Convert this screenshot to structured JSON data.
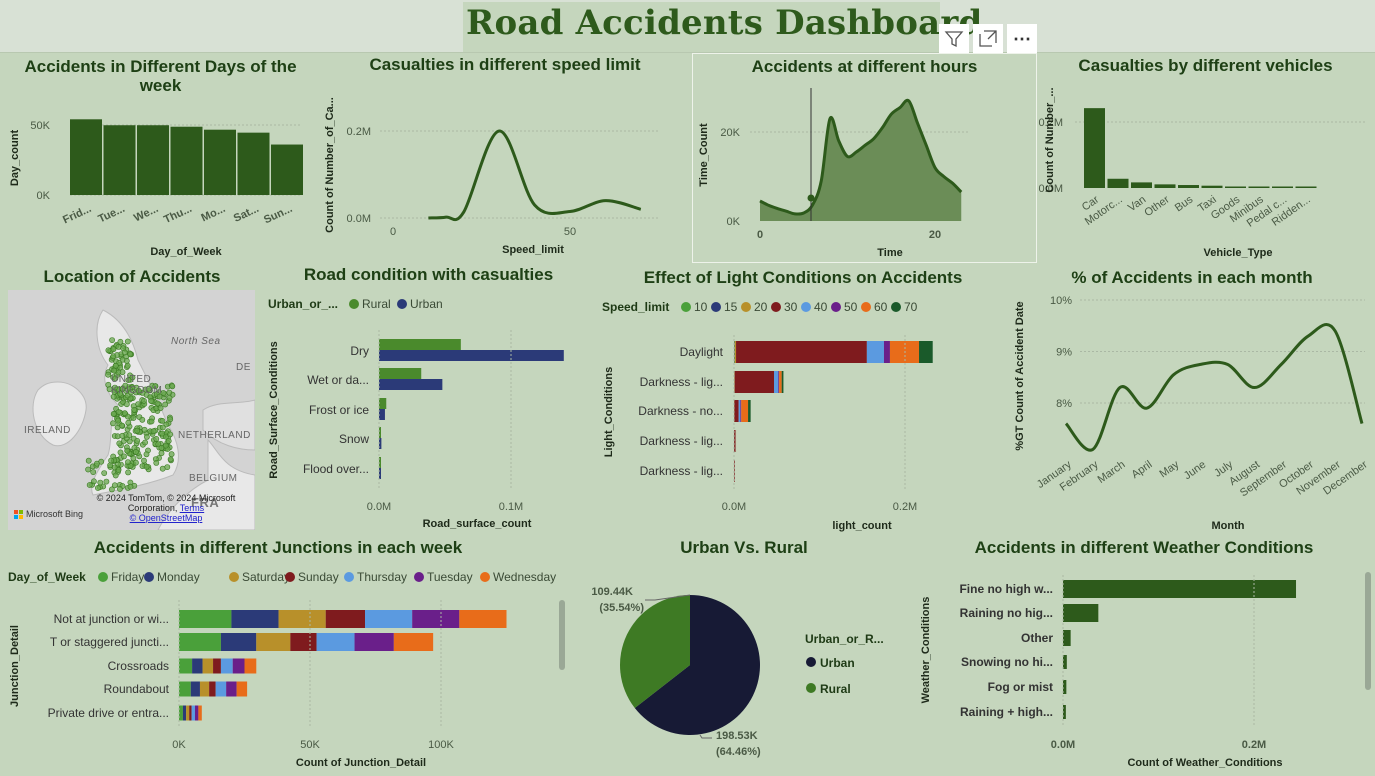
{
  "title": "Road Accidents Dashboard",
  "toolbar": {
    "filter_icon": "filter-icon",
    "focus_icon": "focus-mode-icon",
    "more_icon": "more-options-icon",
    "more_label": "⋯"
  },
  "colors": {
    "dark_green": "#2d5a1b",
    "bg": "#c5d6bd",
    "rural": "#4a8a2c",
    "urban": "#2b3a78",
    "pie_urban": "#171a35",
    "pie_rural": "#3e7a24"
  },
  "map": {
    "title": "Location of Accidents",
    "labels": {
      "north_sea": "North Sea",
      "uk1": "UNITED",
      "uk2": "KINGDOM",
      "ireland": "IRELAND",
      "netherlands": "NETHERLAND",
      "belgium": "BELGIUM",
      "de": "DE",
      "fr": "FRA"
    },
    "attribution1": "© 2024 TomTom, © 2024 Microsoft Corporation,",
    "terms": "Terms",
    "osm": "© OpenStreetMap",
    "brand": "Microsoft Bing"
  },
  "chart_data": [
    {
      "id": "days",
      "type": "bar",
      "title": "Accidents in Different Days of the week",
      "xlabel": "Day_of_Week",
      "ylabel": "Day_count",
      "categories": [
        "Frid...",
        "Tue...",
        "We...",
        "Thu...",
        "Mo...",
        "Sat...",
        "Sun..."
      ],
      "values": [
        51000,
        47000,
        47000,
        46000,
        44000,
        42000,
        34000
      ],
      "ylim": [
        0,
        60000
      ],
      "yticks": [
        "0K",
        "50K"
      ]
    },
    {
      "id": "speed",
      "type": "line",
      "title": "Casualties in different speed limit",
      "xlabel": "Speed_limit",
      "ylabel": "Count of Number_of_Ca...",
      "x": [
        10,
        15,
        20,
        30,
        40,
        50,
        60,
        70
      ],
      "y": [
        100,
        2000,
        14000,
        200000,
        30000,
        15000,
        40000,
        20000
      ],
      "xticks": [
        "0",
        "50"
      ],
      "yticks": [
        "0.0M",
        "0.2M"
      ]
    },
    {
      "id": "hours",
      "type": "area",
      "title": "Accidents at different hours",
      "xlabel": "Time",
      "ylabel": "Time_Count",
      "x": [
        0,
        1,
        2,
        3,
        4,
        5,
        6,
        7,
        8,
        9,
        10,
        11,
        12,
        13,
        14,
        15,
        16,
        17,
        18,
        19,
        20,
        21,
        22,
        23
      ],
      "y": [
        4500,
        3500,
        2800,
        2200,
        1600,
        1800,
        3600,
        9000,
        23000,
        18000,
        14500,
        15500,
        17000,
        18500,
        21000,
        24000,
        25500,
        27000,
        22000,
        17000,
        12000,
        10000,
        8500,
        6500
      ],
      "xticks": [
        "0",
        "20"
      ],
      "yticks": [
        "0K",
        "20K"
      ]
    },
    {
      "id": "vehicles",
      "type": "bar",
      "title": "Casualties by different vehicles",
      "xlabel": "Vehicle_Type",
      "ylabel": "Count of Number_...",
      "categories": [
        "Car",
        "Motorc...",
        "Van",
        "Other",
        "Bus",
        "Taxi",
        "Goods",
        "Minibus",
        "Pedal c...",
        "Ridden..."
      ],
      "values": [
        242000,
        28000,
        17000,
        11000,
        9000,
        7000,
        4000,
        1500,
        1000,
        500
      ],
      "yticks": [
        "0.0M",
        "0.2M"
      ]
    },
    {
      "id": "road",
      "type": "bar",
      "title": "Road condition with casualties",
      "xlabel": "Road_surface_count",
      "ylabel": "Road_Surface_Conditions",
      "legend_title": "Urban_or_...",
      "series": [
        {
          "name": "Rural",
          "values": [
            62000,
            32000,
            5500,
            1200,
            200
          ]
        },
        {
          "name": "Urban",
          "values": [
            140000,
            48000,
            4500,
            1800,
            500
          ]
        }
      ],
      "categories": [
        "Dry",
        "Wet or da...",
        "Frost or ice",
        "Snow",
        "Flood over..."
      ],
      "xticks": [
        "0.0M",
        "0.1M"
      ]
    },
    {
      "id": "light",
      "type": "bar",
      "title": "Effect of Light Conditions on Accidents",
      "xlabel": "light_count",
      "ylabel": "Light_Conditions",
      "legend_title": "Speed_limit",
      "legend": [
        "10",
        "15",
        "20",
        "30",
        "40",
        "50",
        "60",
        "70"
      ],
      "categories": [
        "Daylight",
        "Darkness - lig...",
        "Darkness - no...",
        "Darkness - lig...",
        "Darkness - lig..."
      ],
      "series": [
        {
          "name": "10",
          "values": [
            500,
            200,
            100,
            50,
            20
          ]
        },
        {
          "name": "15",
          "values": [
            400,
            100,
            50,
            20,
            10
          ]
        },
        {
          "name": "20",
          "values": [
            1500,
            500,
            300,
            100,
            50
          ]
        },
        {
          "name": "30",
          "values": [
            153000,
            46000,
            5000,
            1500,
            800
          ]
        },
        {
          "name": "40",
          "values": [
            20000,
            5000,
            2000,
            300,
            100
          ]
        },
        {
          "name": "50",
          "values": [
            7000,
            1000,
            1000,
            100,
            50
          ]
        },
        {
          "name": "60",
          "values": [
            34000,
            3000,
            8000,
            300,
            100
          ]
        },
        {
          "name": "70",
          "values": [
            16000,
            2000,
            3000,
            200,
            50
          ]
        }
      ],
      "xticks": [
        "0.0M",
        "0.2M"
      ]
    },
    {
      "id": "months",
      "type": "line",
      "title": "% of Accidents in each month",
      "xlabel": "Month",
      "ylabel": "%GT Count of Accident Date",
      "categories": [
        "January",
        "February",
        "March",
        "April",
        "May",
        "June",
        "July",
        "August",
        "September",
        "October",
        "November",
        "December"
      ],
      "values": [
        7.6,
        7.1,
        8.3,
        7.9,
        8.55,
        8.75,
        8.75,
        8.3,
        8.75,
        9.3,
        9.4,
        7.6
      ],
      "ylim": [
        7,
        10
      ],
      "yticks": [
        "8%",
        "9%",
        "10%"
      ]
    },
    {
      "id": "junctions",
      "type": "bar",
      "title": "Accidents in different Junctions in each week",
      "xlabel": "Count of Junction_Detail",
      "ylabel": "Junction_Detail",
      "legend_title": "Day_of_Week",
      "legend": [
        "Friday",
        "Monday",
        "Saturday",
        "Sunday",
        "Thursday",
        "Tuesday",
        "Wednesday"
      ],
      "categories": [
        "Not at junction or wi...",
        "T or staggered juncti...",
        "Crossroads",
        "Roundabout",
        "Private drive or entra..."
      ],
      "series": [
        {
          "name": "Friday",
          "values": [
            20000,
            16000,
            5000,
            4500,
            1500
          ]
        },
        {
          "name": "Monday",
          "values": [
            18000,
            13500,
            4000,
            3500,
            1200
          ]
        },
        {
          "name": "Saturday",
          "values": [
            18000,
            13000,
            4000,
            3500,
            1200
          ]
        },
        {
          "name": "Sunday",
          "values": [
            15000,
            10000,
            3000,
            2500,
            900
          ]
        },
        {
          "name": "Thursday",
          "values": [
            18000,
            14500,
            4500,
            4000,
            1300
          ]
        },
        {
          "name": "Tuesday",
          "values": [
            18000,
            15000,
            4500,
            4000,
            1300
          ]
        },
        {
          "name": "Wednesday",
          "values": [
            18000,
            15000,
            4500,
            4000,
            1300
          ]
        }
      ],
      "xticks": [
        "0K",
        "50K",
        "100K"
      ]
    },
    {
      "id": "urban_rural",
      "type": "pie",
      "title": "Urban Vs. Rural",
      "legend_title": "Urban_or_R...",
      "categories": [
        "Urban",
        "Rural"
      ],
      "values": [
        198530,
        109440
      ],
      "labels": [
        {
          "value": "198.53K",
          "pct": "(64.46%)"
        },
        {
          "value": "109.44K",
          "pct": "(35.54%)"
        }
      ]
    },
    {
      "id": "weather",
      "type": "bar",
      "title": "Accidents in different Weather Conditions",
      "xlabel": "Count of Weather_Conditions",
      "ylabel": "Weather_Conditions",
      "categories": [
        "Fine no high w...",
        "Raining no hig...",
        "Other",
        "Snowing no hi...",
        "Fog or mist",
        "Raining + high..."
      ],
      "values": [
        244000,
        37000,
        8000,
        4000,
        3500,
        3000
      ],
      "xticks": [
        "0.0M",
        "0.2M"
      ]
    }
  ]
}
